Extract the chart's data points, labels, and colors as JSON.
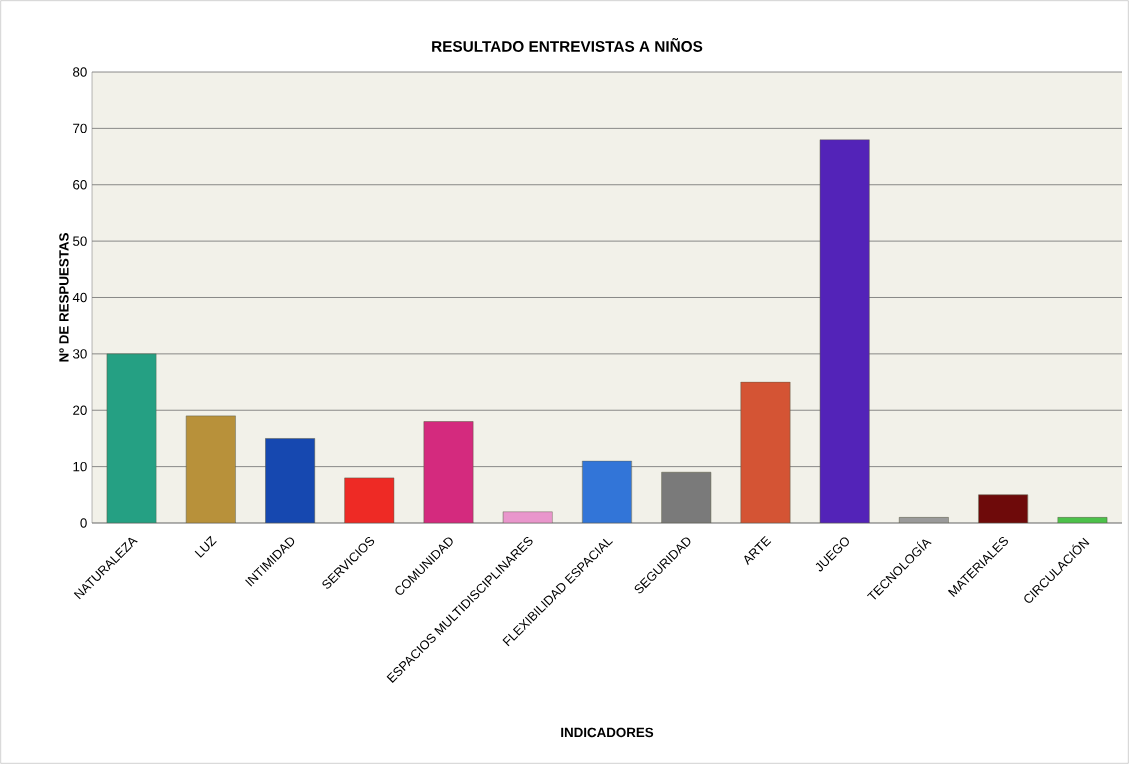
{
  "chart_data": {
    "type": "bar",
    "title": "RESULTADO ENTREVISTAS A NIÑOS",
    "xlabel": "INDICADORES",
    "ylabel": "Nº DE RESPUESTAS",
    "categories": [
      "NATURALEZA",
      "LUZ",
      "INTIMIDAD",
      "SERVICIOS",
      "COMUNIDAD",
      "ESPACIOS MULTIDISCIPLINARES",
      "FLEXIBILIDAD ESPACIAL",
      "SEGURIDAD",
      "ARTE",
      "JUEGO",
      "TECNOLOGÍA",
      "MATERIALES",
      "CIRCULACIÓN"
    ],
    "values": [
      30,
      19,
      15,
      8,
      18,
      2,
      11,
      9,
      25,
      68,
      1,
      5,
      1
    ],
    "colors": [
      "#25a083",
      "#b8913a",
      "#1648b0",
      "#ee2a25",
      "#d42a7e",
      "#e996cc",
      "#3275d8",
      "#7a7a7a",
      "#d45434",
      "#5323b8",
      "#9a9a9a",
      "#6e0a0a",
      "#4cc14a"
    ],
    "ylim": [
      0,
      80
    ],
    "yticks": [
      0,
      10,
      20,
      30,
      40,
      50,
      60,
      70,
      80
    ],
    "grid": "y"
  }
}
